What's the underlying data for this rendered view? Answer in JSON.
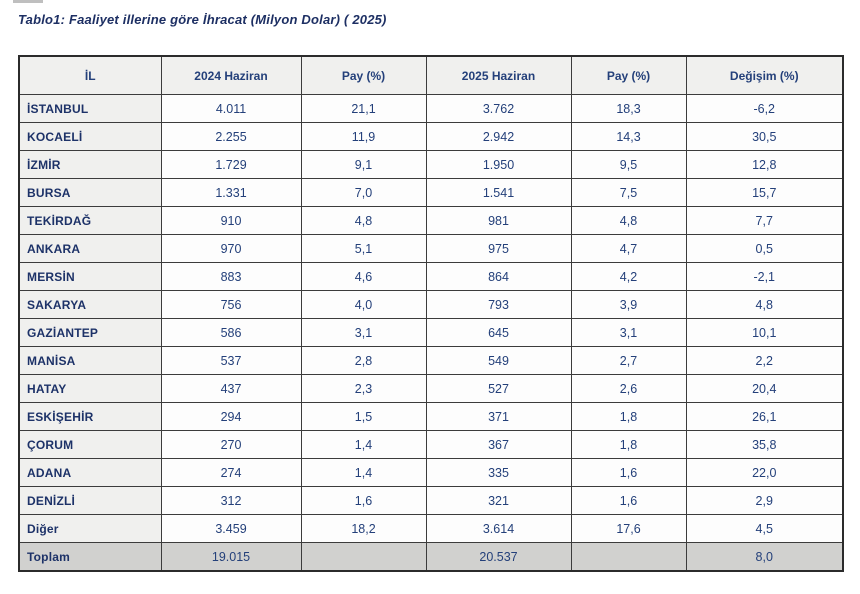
{
  "title": "Tablo1: Faaliyet illerine göre İhracat (Milyon Dolar) ( 2025)",
  "table": {
    "columns": [
      "İL",
      "2024 Haziran",
      "Pay (%)",
      "2025 Haziran",
      "Pay (%)",
      "Değişim (%)"
    ],
    "rows": [
      [
        "İSTANBUL",
        "4.011",
        "21,1",
        "3.762",
        "18,3",
        "-6,2"
      ],
      [
        "KOCAELİ",
        "2.255",
        "11,9",
        "2.942",
        "14,3",
        "30,5"
      ],
      [
        "İZMİR",
        "1.729",
        "9,1",
        "1.950",
        "9,5",
        "12,8"
      ],
      [
        "BURSA",
        "1.331",
        "7,0",
        "1.541",
        "7,5",
        "15,7"
      ],
      [
        "TEKİRDAĞ",
        "910",
        "4,8",
        "981",
        "4,8",
        "7,7"
      ],
      [
        "ANKARA",
        "970",
        "5,1",
        "975",
        "4,7",
        "0,5"
      ],
      [
        "MERSİN",
        "883",
        "4,6",
        "864",
        "4,2",
        "-2,1"
      ],
      [
        "SAKARYA",
        "756",
        "4,0",
        "793",
        "3,9",
        "4,8"
      ],
      [
        "GAZİANTEP",
        "586",
        "3,1",
        "645",
        "3,1",
        "10,1"
      ],
      [
        "MANİSA",
        "537",
        "2,8",
        "549",
        "2,7",
        "2,2"
      ],
      [
        "HATAY",
        "437",
        "2,3",
        "527",
        "2,6",
        "20,4"
      ],
      [
        "ESKİŞEHİR",
        "294",
        "1,5",
        "371",
        "1,8",
        "26,1"
      ],
      [
        "ÇORUM",
        "270",
        "1,4",
        "367",
        "1,8",
        "35,8"
      ],
      [
        "ADANA",
        "274",
        "1,4",
        "335",
        "1,6",
        "22,0"
      ],
      [
        "DENİZLİ",
        "312",
        "1,6",
        "321",
        "1,6",
        "2,9"
      ],
      [
        "Diğer",
        "3.459",
        "18,2",
        "3.614",
        "17,6",
        "4,5"
      ]
    ],
    "total_row": [
      "Toplam",
      "19.015",
      "",
      "20.537",
      "",
      "8,0"
    ]
  },
  "colors": {
    "text_navy": "#24407a",
    "title_navy": "#1d2f63",
    "header_bg": "#f0f0ee",
    "total_row_bg": "#d1d1cf",
    "border": "#3c3c3c"
  }
}
